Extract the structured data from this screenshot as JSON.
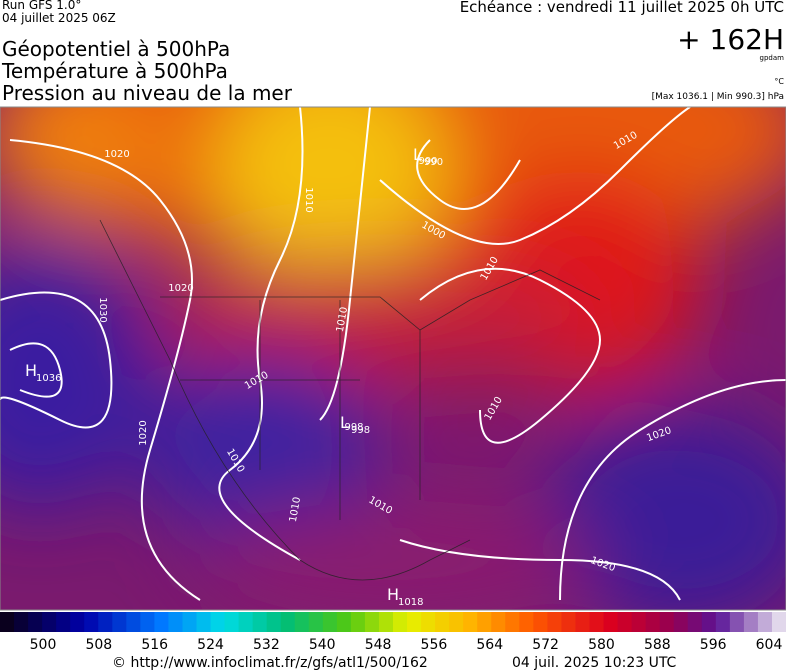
{
  "header": {
    "run": "Run GFS 1.0°",
    "run_date": "04 juillet 2025 06Z",
    "valid": "Echéance : vendredi 11 juillet 2025 0h UTC",
    "lead": "+ 162H",
    "unit_geo": "gpdam",
    "unit_temp": "°C",
    "extremes": "[Max 1036.1 | Min 990.3] hPa",
    "titles": [
      "Géopotentiel à 500hPa",
      "Température à 500hPa",
      "Pression au niveau de la mer"
    ]
  },
  "map": {
    "isobar_labels": [
      1020,
      1010,
      990,
      1000,
      1010,
      1010,
      1030,
      1020,
      1010,
      1010,
      998,
      1010,
      1020,
      1010,
      1010,
      1010,
      1020,
      1020,
      1018,
      1036
    ],
    "centers": [
      {
        "symbol": "H",
        "value": 1036
      },
      {
        "symbol": "L",
        "value": 998
      },
      {
        "symbol": "H",
        "value": 1018
      },
      {
        "symbol": "L",
        "value": 990
      }
    ]
  },
  "colorbar": {
    "ticks": [
      500,
      508,
      516,
      524,
      532,
      540,
      548,
      556,
      564,
      572,
      580,
      588,
      596,
      604
    ]
  },
  "footer": {
    "url": "© http://www.infoclimat.fr/z/gfs/atl1/500/162",
    "timestamp": "04 juil. 2025 10:23 UTC"
  }
}
